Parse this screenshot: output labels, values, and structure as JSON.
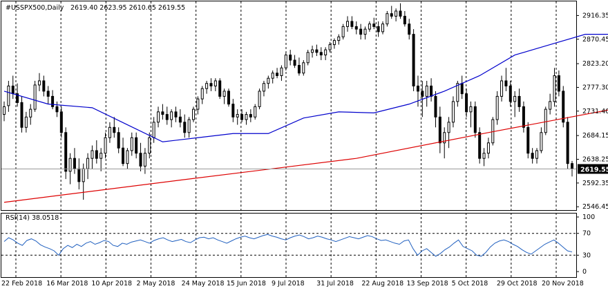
{
  "header": {
    "symbol": "#USSPX500,Daily",
    "ohlc": "2619.40 2623.95 2610.65 2619.55"
  },
  "chart_data": {
    "type": "candlestick",
    "instrument": "#USSPX500",
    "timeframe": "Daily",
    "last_price_label": "2619.55",
    "price_axis": {
      "ticks": [
        "2916.35",
        "2870.45",
        "2823.20",
        "2777.30",
        "2731.40",
        "2684.15",
        "2638.25",
        "2592.35",
        "2546.45"
      ],
      "range": [
        2540,
        2945
      ]
    },
    "x_tick_labels": [
      "22 Feb 2018",
      "16 Mar 2018",
      "10 Apr 2018",
      "2 May 2018",
      "24 May 2018",
      "15 Jun 2018",
      "9 Jul 2018",
      "31 Jul 2018",
      "22 Aug 2018",
      "13 Sep 2018",
      "5 Oct 2018",
      "29 Oct 2018",
      "20 Nov 2018"
    ],
    "ma_colors": {
      "fast": "#0000cc",
      "slow": "#dd0000"
    },
    "ma_fast_points": [
      [
        0,
        2770
      ],
      [
        10,
        2745
      ],
      [
        20,
        2738
      ],
      [
        28,
        2705
      ],
      [
        36,
        2672
      ],
      [
        44,
        2680
      ],
      [
        52,
        2688
      ],
      [
        60,
        2688
      ],
      [
        68,
        2718
      ],
      [
        76,
        2730
      ],
      [
        84,
        2728
      ],
      [
        92,
        2745
      ],
      [
        100,
        2770
      ],
      [
        108,
        2800
      ],
      [
        116,
        2840
      ],
      [
        124,
        2860
      ],
      [
        132,
        2880
      ],
      [
        140,
        2880
      ],
      [
        146,
        2860
      ],
      [
        152,
        2822
      ],
      [
        158,
        2793
      ],
      [
        164,
        2765
      ],
      [
        170,
        2740
      ]
    ],
    "ma_slow_points": [
      [
        0,
        2555
      ],
      [
        40,
        2598
      ],
      [
        80,
        2640
      ],
      [
        110,
        2690
      ],
      [
        140,
        2738
      ],
      [
        150,
        2765
      ],
      [
        160,
        2765
      ],
      [
        170,
        2765
      ]
    ],
    "candles": [
      {
        "o": 2725,
        "h": 2750,
        "l": 2712,
        "c": 2740
      },
      {
        "o": 2742,
        "h": 2790,
        "l": 2730,
        "c": 2780
      },
      {
        "o": 2780,
        "h": 2800,
        "l": 2755,
        "c": 2765
      },
      {
        "o": 2765,
        "h": 2785,
        "l": 2740,
        "c": 2748
      },
      {
        "o": 2748,
        "h": 2760,
        "l": 2690,
        "c": 2700
      },
      {
        "o": 2700,
        "h": 2730,
        "l": 2690,
        "c": 2720
      },
      {
        "o": 2720,
        "h": 2745,
        "l": 2705,
        "c": 2735
      },
      {
        "o": 2735,
        "h": 2790,
        "l": 2730,
        "c": 2782
      },
      {
        "o": 2782,
        "h": 2805,
        "l": 2770,
        "c": 2790
      },
      {
        "o": 2790,
        "h": 2800,
        "l": 2760,
        "c": 2770
      },
      {
        "o": 2770,
        "h": 2780,
        "l": 2745,
        "c": 2760
      },
      {
        "o": 2760,
        "h": 2772,
        "l": 2735,
        "c": 2740
      },
      {
        "o": 2740,
        "h": 2750,
        "l": 2720,
        "c": 2730
      },
      {
        "o": 2730,
        "h": 2740,
        "l": 2680,
        "c": 2690
      },
      {
        "o": 2690,
        "h": 2700,
        "l": 2600,
        "c": 2615
      },
      {
        "o": 2615,
        "h": 2650,
        "l": 2590,
        "c": 2640
      },
      {
        "o": 2640,
        "h": 2660,
        "l": 2610,
        "c": 2620
      },
      {
        "o": 2620,
        "h": 2640,
        "l": 2580,
        "c": 2595
      },
      {
        "o": 2595,
        "h": 2630,
        "l": 2560,
        "c": 2620
      },
      {
        "o": 2620,
        "h": 2650,
        "l": 2600,
        "c": 2640
      },
      {
        "o": 2640,
        "h": 2665,
        "l": 2620,
        "c": 2655
      },
      {
        "o": 2655,
        "h": 2675,
        "l": 2630,
        "c": 2640
      },
      {
        "o": 2640,
        "h": 2660,
        "l": 2615,
        "c": 2650
      },
      {
        "o": 2650,
        "h": 2690,
        "l": 2640,
        "c": 2680
      },
      {
        "o": 2680,
        "h": 2710,
        "l": 2670,
        "c": 2700
      },
      {
        "o": 2700,
        "h": 2720,
        "l": 2680,
        "c": 2690
      },
      {
        "o": 2690,
        "h": 2700,
        "l": 2650,
        "c": 2660
      },
      {
        "o": 2660,
        "h": 2680,
        "l": 2625,
        "c": 2630
      },
      {
        "o": 2630,
        "h": 2660,
        "l": 2620,
        "c": 2655
      },
      {
        "o": 2655,
        "h": 2690,
        "l": 2645,
        "c": 2680
      },
      {
        "o": 2680,
        "h": 2690,
        "l": 2640,
        "c": 2650
      },
      {
        "o": 2650,
        "h": 2670,
        "l": 2615,
        "c": 2625
      },
      {
        "o": 2625,
        "h": 2660,
        "l": 2610,
        "c": 2650
      },
      {
        "o": 2650,
        "h": 2690,
        "l": 2640,
        "c": 2680
      },
      {
        "o": 2680,
        "h": 2720,
        "l": 2670,
        "c": 2710
      },
      {
        "o": 2710,
        "h": 2740,
        "l": 2700,
        "c": 2730
      },
      {
        "o": 2730,
        "h": 2745,
        "l": 2715,
        "c": 2725
      },
      {
        "o": 2725,
        "h": 2740,
        "l": 2705,
        "c": 2715
      },
      {
        "o": 2715,
        "h": 2735,
        "l": 2700,
        "c": 2730
      },
      {
        "o": 2730,
        "h": 2740,
        "l": 2710,
        "c": 2720
      },
      {
        "o": 2720,
        "h": 2735,
        "l": 2700,
        "c": 2710
      },
      {
        "o": 2710,
        "h": 2725,
        "l": 2680,
        "c": 2690
      },
      {
        "o": 2690,
        "h": 2720,
        "l": 2680,
        "c": 2715
      },
      {
        "o": 2715,
        "h": 2740,
        "l": 2710,
        "c": 2735
      },
      {
        "o": 2735,
        "h": 2760,
        "l": 2725,
        "c": 2755
      },
      {
        "o": 2755,
        "h": 2780,
        "l": 2745,
        "c": 2775
      },
      {
        "o": 2775,
        "h": 2790,
        "l": 2765,
        "c": 2785
      },
      {
        "o": 2785,
        "h": 2795,
        "l": 2770,
        "c": 2780
      },
      {
        "o": 2780,
        "h": 2795,
        "l": 2770,
        "c": 2790
      },
      {
        "o": 2790,
        "h": 2795,
        "l": 2755,
        "c": 2760
      },
      {
        "o": 2760,
        "h": 2775,
        "l": 2745,
        "c": 2770
      },
      {
        "o": 2770,
        "h": 2775,
        "l": 2740,
        "c": 2745
      },
      {
        "o": 2745,
        "h": 2755,
        "l": 2710,
        "c": 2720
      },
      {
        "o": 2720,
        "h": 2735,
        "l": 2705,
        "c": 2725
      },
      {
        "o": 2725,
        "h": 2735,
        "l": 2710,
        "c": 2715
      },
      {
        "o": 2715,
        "h": 2730,
        "l": 2705,
        "c": 2725
      },
      {
        "o": 2725,
        "h": 2735,
        "l": 2710,
        "c": 2720
      },
      {
        "o": 2720,
        "h": 2745,
        "l": 2715,
        "c": 2740
      },
      {
        "o": 2740,
        "h": 2775,
        "l": 2735,
        "c": 2770
      },
      {
        "o": 2770,
        "h": 2790,
        "l": 2760,
        "c": 2785
      },
      {
        "o": 2785,
        "h": 2800,
        "l": 2775,
        "c": 2795
      },
      {
        "o": 2795,
        "h": 2810,
        "l": 2785,
        "c": 2805
      },
      {
        "o": 2805,
        "h": 2815,
        "l": 2795,
        "c": 2800
      },
      {
        "o": 2800,
        "h": 2820,
        "l": 2790,
        "c": 2815
      },
      {
        "o": 2815,
        "h": 2845,
        "l": 2810,
        "c": 2840
      },
      {
        "o": 2840,
        "h": 2850,
        "l": 2820,
        "c": 2830
      },
      {
        "o": 2830,
        "h": 2840,
        "l": 2815,
        "c": 2820
      },
      {
        "o": 2820,
        "h": 2835,
        "l": 2800,
        "c": 2805
      },
      {
        "o": 2805,
        "h": 2830,
        "l": 2800,
        "c": 2825
      },
      {
        "o": 2825,
        "h": 2850,
        "l": 2820,
        "c": 2845
      },
      {
        "o": 2845,
        "h": 2858,
        "l": 2835,
        "c": 2850
      },
      {
        "o": 2850,
        "h": 2860,
        "l": 2838,
        "c": 2845
      },
      {
        "o": 2845,
        "h": 2855,
        "l": 2830,
        "c": 2840
      },
      {
        "o": 2840,
        "h": 2855,
        "l": 2830,
        "c": 2850
      },
      {
        "o": 2850,
        "h": 2865,
        "l": 2845,
        "c": 2860
      },
      {
        "o": 2860,
        "h": 2872,
        "l": 2852,
        "c": 2868
      },
      {
        "o": 2868,
        "h": 2880,
        "l": 2860,
        "c": 2875
      },
      {
        "o": 2875,
        "h": 2900,
        "l": 2870,
        "c": 2895
      },
      {
        "o": 2895,
        "h": 2915,
        "l": 2885,
        "c": 2905
      },
      {
        "o": 2905,
        "h": 2915,
        "l": 2890,
        "c": 2895
      },
      {
        "o": 2895,
        "h": 2905,
        "l": 2880,
        "c": 2890
      },
      {
        "o": 2890,
        "h": 2900,
        "l": 2870,
        "c": 2880
      },
      {
        "o": 2880,
        "h": 2895,
        "l": 2870,
        "c": 2890
      },
      {
        "o": 2890,
        "h": 2905,
        "l": 2885,
        "c": 2900
      },
      {
        "o": 2900,
        "h": 2912,
        "l": 2890,
        "c": 2895
      },
      {
        "o": 2895,
        "h": 2905,
        "l": 2875,
        "c": 2885
      },
      {
        "o": 2885,
        "h": 2905,
        "l": 2880,
        "c": 2900
      },
      {
        "o": 2900,
        "h": 2925,
        "l": 2895,
        "c": 2920
      },
      {
        "o": 2920,
        "h": 2935,
        "l": 2910,
        "c": 2915
      },
      {
        "o": 2915,
        "h": 2930,
        "l": 2905,
        "c": 2925
      },
      {
        "o": 2925,
        "h": 2940,
        "l": 2910,
        "c": 2915
      },
      {
        "o": 2915,
        "h": 2925,
        "l": 2895,
        "c": 2900
      },
      {
        "o": 2900,
        "h": 2910,
        "l": 2870,
        "c": 2880
      },
      {
        "o": 2880,
        "h": 2890,
        "l": 2770,
        "c": 2780
      },
      {
        "o": 2780,
        "h": 2800,
        "l": 2740,
        "c": 2770
      },
      {
        "o": 2770,
        "h": 2790,
        "l": 2720,
        "c": 2760
      },
      {
        "o": 2760,
        "h": 2790,
        "l": 2740,
        "c": 2780
      },
      {
        "o": 2780,
        "h": 2795,
        "l": 2750,
        "c": 2760
      },
      {
        "o": 2760,
        "h": 2770,
        "l": 2700,
        "c": 2720
      },
      {
        "o": 2720,
        "h": 2740,
        "l": 2650,
        "c": 2670
      },
      {
        "o": 2670,
        "h": 2700,
        "l": 2640,
        "c": 2690
      },
      {
        "o": 2690,
        "h": 2720,
        "l": 2660,
        "c": 2710
      },
      {
        "o": 2710,
        "h": 2760,
        "l": 2700,
        "c": 2750
      },
      {
        "o": 2750,
        "h": 2790,
        "l": 2740,
        "c": 2785
      },
      {
        "o": 2785,
        "h": 2800,
        "l": 2755,
        "c": 2765
      },
      {
        "o": 2765,
        "h": 2775,
        "l": 2720,
        "c": 2730
      },
      {
        "o": 2730,
        "h": 2750,
        "l": 2700,
        "c": 2740
      },
      {
        "o": 2740,
        "h": 2750,
        "l": 2680,
        "c": 2690
      },
      {
        "o": 2690,
        "h": 2700,
        "l": 2630,
        "c": 2640
      },
      {
        "o": 2640,
        "h": 2660,
        "l": 2625,
        "c": 2650
      },
      {
        "o": 2650,
        "h": 2680,
        "l": 2640,
        "c": 2670
      },
      {
        "o": 2670,
        "h": 2720,
        "l": 2665,
        "c": 2715
      },
      {
        "o": 2715,
        "h": 2770,
        "l": 2705,
        "c": 2760
      },
      {
        "o": 2760,
        "h": 2800,
        "l": 2750,
        "c": 2790
      },
      {
        "o": 2790,
        "h": 2815,
        "l": 2770,
        "c": 2780
      },
      {
        "o": 2780,
        "h": 2790,
        "l": 2740,
        "c": 2750
      },
      {
        "o": 2750,
        "h": 2770,
        "l": 2720,
        "c": 2760
      },
      {
        "o": 2760,
        "h": 2775,
        "l": 2730,
        "c": 2740
      },
      {
        "o": 2740,
        "h": 2750,
        "l": 2690,
        "c": 2700
      },
      {
        "o": 2700,
        "h": 2710,
        "l": 2640,
        "c": 2650
      },
      {
        "o": 2650,
        "h": 2660,
        "l": 2630,
        "c": 2640
      },
      {
        "o": 2640,
        "h": 2660,
        "l": 2630,
        "c": 2655
      },
      {
        "o": 2655,
        "h": 2700,
        "l": 2650,
        "c": 2690
      },
      {
        "o": 2690,
        "h": 2740,
        "l": 2685,
        "c": 2735
      },
      {
        "o": 2735,
        "h": 2765,
        "l": 2725,
        "c": 2750
      },
      {
        "o": 2750,
        "h": 2815,
        "l": 2740,
        "c": 2800
      },
      {
        "o": 2800,
        "h": 2810,
        "l": 2760,
        "c": 2770
      },
      {
        "o": 2770,
        "h": 2780,
        "l": 2700,
        "c": 2710
      },
      {
        "o": 2710,
        "h": 2720,
        "l": 2620,
        "c": 2630
      },
      {
        "o": 2630,
        "h": 2635,
        "l": 2605,
        "c": 2619.55
      }
    ],
    "rsi": {
      "label": "RSI(14) 38.0518",
      "ticks": [
        "100",
        "70",
        "30",
        "0"
      ],
      "levels": [
        70,
        30
      ],
      "range": [
        0,
        100
      ],
      "line_color": "#1f5fbf",
      "values": [
        55,
        62,
        58,
        52,
        48,
        57,
        60,
        56,
        49,
        45,
        42,
        38,
        30,
        42,
        48,
        44,
        50,
        46,
        52,
        55,
        50,
        53,
        57,
        55,
        48,
        46,
        52,
        50,
        54,
        56,
        58,
        55,
        52,
        57,
        60,
        62,
        58,
        55,
        57,
        59,
        55,
        53,
        58,
        62,
        63,
        60,
        62,
        58,
        55,
        52,
        56,
        60,
        63,
        65,
        62,
        60,
        63,
        66,
        68,
        65,
        63,
        60,
        58,
        62,
        65,
        67,
        64,
        60,
        62,
        65,
        63,
        60,
        58,
        55,
        58,
        61,
        64,
        62,
        60,
        63,
        66,
        64,
        60,
        57,
        58,
        55,
        52,
        50,
        56,
        58,
        42,
        30,
        38,
        42,
        35,
        28,
        33,
        40,
        45,
        52,
        58,
        46,
        42,
        38,
        30,
        28,
        35,
        45,
        52,
        56,
        58,
        55,
        50,
        46,
        40,
        35,
        32,
        38,
        44,
        50,
        54,
        58,
        52,
        45,
        38,
        36
      ]
    }
  }
}
